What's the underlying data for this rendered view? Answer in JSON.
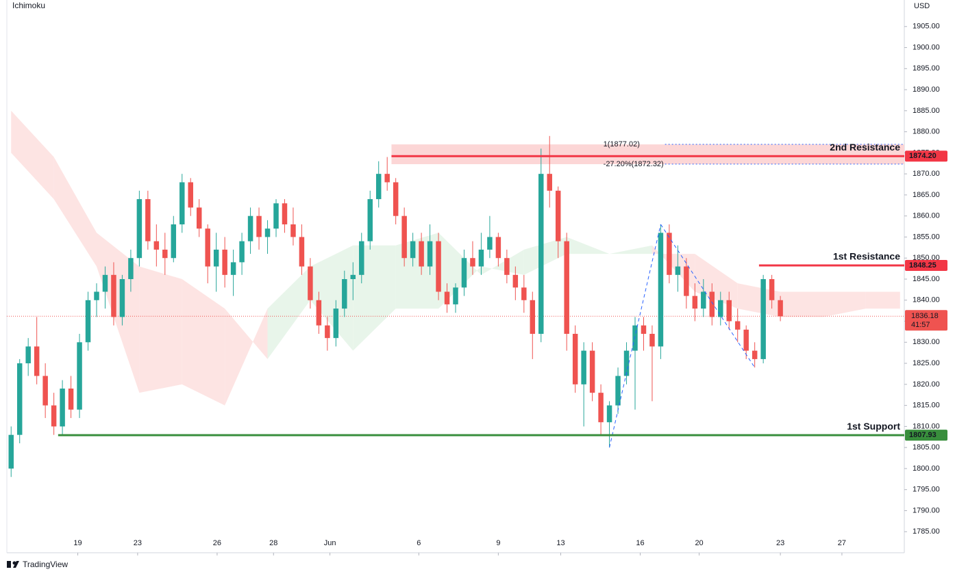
{
  "chart_data": {
    "type": "candlestick",
    "title": "Ichimoku",
    "y_axis_label": "USD",
    "brand": "TradingView",
    "up_color": "#26a69a",
    "down_color": "#ef5350",
    "ylim": [
      1780,
      1911.3
    ],
    "xlim": [
      -0.5,
      104.5
    ],
    "yticks": [
      {
        "value": 1905,
        "label": "1905.00"
      },
      {
        "value": 1900,
        "label": "1900.00"
      },
      {
        "value": 1895,
        "label": "1895.00"
      },
      {
        "value": 1890,
        "label": "1890.00"
      },
      {
        "value": 1885,
        "label": "1885.00"
      },
      {
        "value": 1880,
        "label": "1880.00"
      },
      {
        "value": 1875,
        "label": "1875.00"
      },
      {
        "value": 1870,
        "label": "1870.00"
      },
      {
        "value": 1865,
        "label": "1865.00"
      },
      {
        "value": 1860,
        "label": "1860.00"
      },
      {
        "value": 1855,
        "label": "1855.00"
      },
      {
        "value": 1850,
        "label": "1850.00"
      },
      {
        "value": 1845,
        "label": "1845.00"
      },
      {
        "value": 1840,
        "label": "1840.00"
      },
      {
        "value": 1835,
        "label": "1835.00"
      },
      {
        "value": 1830,
        "label": "1830.00"
      },
      {
        "value": 1825,
        "label": "1825.00"
      },
      {
        "value": 1820,
        "label": "1820.00"
      },
      {
        "value": 1815,
        "label": "1815.00"
      },
      {
        "value": 1810,
        "label": "1810.00"
      },
      {
        "value": 1805,
        "label": "1805.00"
      },
      {
        "value": 1800,
        "label": "1800.00"
      },
      {
        "value": 1795,
        "label": "1795.00"
      },
      {
        "value": 1790,
        "label": "1790.00"
      },
      {
        "value": 1785,
        "label": "1785.00"
      }
    ],
    "xticks": [
      {
        "value": 7.8,
        "label": "19"
      },
      {
        "value": 14.8,
        "label": "23"
      },
      {
        "value": 24.1,
        "label": "26"
      },
      {
        "value": 30.7,
        "label": "28"
      },
      {
        "value": 37.3,
        "label": "Jun"
      },
      {
        "value": 47.7,
        "label": "6"
      },
      {
        "value": 57,
        "label": "9"
      },
      {
        "value": 64.3,
        "label": "13"
      },
      {
        "value": 73.6,
        "label": "16"
      },
      {
        "value": 80.5,
        "label": "20"
      },
      {
        "value": 90,
        "label": "23"
      },
      {
        "value": 97.2,
        "label": "27"
      }
    ],
    "ohlc": [
      [
        1800,
        1810,
        1798,
        1808
      ],
      [
        1808,
        1826,
        1806,
        1825
      ],
      [
        1825,
        1831,
        1822,
        1829
      ],
      [
        1829,
        1836,
        1820,
        1822
      ],
      [
        1822,
        1825,
        1812,
        1815
      ],
      [
        1815,
        1818,
        1808,
        1810
      ],
      [
        1810,
        1821,
        1808,
        1819
      ],
      [
        1819,
        1822,
        1812,
        1814
      ],
      [
        1814,
        1832,
        1812,
        1830
      ],
      [
        1830,
        1842,
        1828,
        1840
      ],
      [
        1840,
        1844,
        1836,
        1842
      ],
      [
        1842,
        1848,
        1838,
        1846
      ],
      [
        1846,
        1849,
        1834,
        1836
      ],
      [
        1836,
        1846,
        1834,
        1845
      ],
      [
        1845,
        1852,
        1842,
        1850
      ],
      [
        1850,
        1866,
        1848,
        1864
      ],
      [
        1864,
        1866,
        1852,
        1854
      ],
      [
        1854,
        1858,
        1848,
        1852
      ],
      [
        1852,
        1856,
        1846,
        1850
      ],
      [
        1850,
        1860,
        1849,
        1858
      ],
      [
        1858,
        1870,
        1856,
        1868
      ],
      [
        1868,
        1869,
        1860,
        1862
      ],
      [
        1862,
        1864,
        1855,
        1857
      ],
      [
        1857,
        1858,
        1844,
        1848
      ],
      [
        1848,
        1856,
        1842,
        1852
      ],
      [
        1852,
        1855,
        1843,
        1846
      ],
      [
        1846,
        1852,
        1841,
        1849
      ],
      [
        1849,
        1856,
        1846,
        1854
      ],
      [
        1854,
        1862,
        1851,
        1860
      ],
      [
        1860,
        1862,
        1852,
        1855
      ],
      [
        1855,
        1859,
        1851,
        1857
      ],
      [
        1857,
        1864,
        1855,
        1863
      ],
      [
        1863,
        1864,
        1856,
        1858
      ],
      [
        1858,
        1862,
        1853,
        1855
      ],
      [
        1855,
        1858,
        1846,
        1848
      ],
      [
        1848,
        1850,
        1838,
        1840
      ],
      [
        1840,
        1842,
        1832,
        1834
      ],
      [
        1834,
        1836,
        1828,
        1831
      ],
      [
        1831,
        1840,
        1829,
        1838
      ],
      [
        1838,
        1847,
        1836,
        1845
      ],
      [
        1845,
        1849,
        1840,
        1846
      ],
      [
        1846,
        1856,
        1844,
        1854
      ],
      [
        1854,
        1866,
        1852,
        1864
      ],
      [
        1864,
        1873,
        1862,
        1870
      ],
      [
        1870,
        1874,
        1866,
        1868
      ],
      [
        1868,
        1869,
        1858,
        1860
      ],
      [
        1860,
        1862,
        1848,
        1850
      ],
      [
        1850,
        1856,
        1848,
        1854
      ],
      [
        1854,
        1856,
        1846,
        1848
      ],
      [
        1848,
        1858,
        1846,
        1854
      ],
      [
        1854,
        1856,
        1840,
        1842
      ],
      [
        1842,
        1844,
        1837,
        1839
      ],
      [
        1839,
        1844,
        1837,
        1843
      ],
      [
        1843,
        1852,
        1841,
        1850
      ],
      [
        1850,
        1854,
        1846,
        1848
      ],
      [
        1848,
        1856,
        1846,
        1852
      ],
      [
        1852,
        1860,
        1850,
        1855
      ],
      [
        1855,
        1856,
        1848,
        1850
      ],
      [
        1850,
        1852,
        1844,
        1846
      ],
      [
        1846,
        1848,
        1840,
        1843
      ],
      [
        1843,
        1846,
        1837,
        1840
      ],
      [
        1840,
        1842,
        1826,
        1832
      ],
      [
        1832,
        1876,
        1830,
        1870
      ],
      [
        1870,
        1879,
        1862,
        1866
      ],
      [
        1866,
        1867,
        1850,
        1854
      ],
      [
        1854,
        1856,
        1828,
        1832
      ],
      [
        1832,
        1834,
        1818,
        1820
      ],
      [
        1820,
        1830,
        1810,
        1828
      ],
      [
        1828,
        1830,
        1816,
        1818
      ],
      [
        1818,
        1820,
        1808,
        1811
      ],
      [
        1811,
        1816,
        1805,
        1815
      ],
      [
        1815,
        1824,
        1813,
        1822
      ],
      [
        1822,
        1830,
        1820,
        1828
      ],
      [
        1828,
        1836,
        1814,
        1834
      ],
      [
        1834,
        1836,
        1828,
        1832
      ],
      [
        1832,
        1834,
        1816,
        1829
      ],
      [
        1829,
        1858,
        1826,
        1856
      ],
      [
        1856,
        1858,
        1844,
        1846
      ],
      [
        1846,
        1853,
        1842,
        1848
      ],
      [
        1848,
        1850,
        1838,
        1841
      ],
      [
        1841,
        1844,
        1835,
        1838
      ],
      [
        1838,
        1845,
        1836,
        1842
      ],
      [
        1842,
        1844,
        1834,
        1836
      ],
      [
        1836,
        1842,
        1834,
        1840
      ],
      [
        1840,
        1842,
        1833,
        1835
      ],
      [
        1835,
        1838,
        1830,
        1833
      ],
      [
        1833,
        1834,
        1826,
        1828
      ],
      [
        1828,
        1830,
        1824,
        1826
      ],
      [
        1826,
        1846,
        1825,
        1845
      ],
      [
        1845,
        1846,
        1838,
        1840
      ],
      [
        1840,
        1841,
        1835,
        1836.18
      ]
    ],
    "cloud": {
      "up_color": "#e8f5ea",
      "down_color": "#fde4e3",
      "x": [
        0,
        5,
        10,
        15,
        20,
        25,
        30,
        35,
        40,
        45,
        50,
        55,
        60,
        65,
        70,
        75,
        80,
        85,
        90,
        95,
        100,
        104
      ],
      "span_a": [
        1875,
        1864,
        1848,
        1818,
        1820,
        1815,
        1838,
        1848,
        1853,
        1853,
        1856,
        1846,
        1852,
        1855,
        1851,
        1853,
        1842,
        1838,
        1836,
        1836,
        1838,
        1838
      ],
      "span_b": [
        1885,
        1874,
        1856,
        1848,
        1845,
        1838,
        1826,
        1840,
        1828,
        1838,
        1838,
        1848,
        1846,
        1851,
        1851,
        1851,
        1851,
        1844,
        1842,
        1842,
        1842,
        1842
      ]
    },
    "zone": {
      "color": "#fcd6d6",
      "x_start": 44.5,
      "low": 1872.3,
      "high": 1877.0
    },
    "levels": [
      {
        "name": "2nd Resistance",
        "value": 1874.2,
        "value_label": "1874.20",
        "x_start": 44.5,
        "color": "#f23645"
      },
      {
        "name": "1st Resistance",
        "value": 1848.25,
        "value_label": "1848.25",
        "x_start": 87.5,
        "color": "#f23645"
      },
      {
        "name": "1st Support",
        "value": 1807.93,
        "value_label": "1807.93",
        "x_start": 5.5,
        "color": "#388e3c"
      }
    ],
    "fib_lines": [
      {
        "label": "1(1877.02)",
        "value": 1877.02,
        "x_start": 76.5
      },
      {
        "label": "-27.20%(1872.32)",
        "value": 1872.32,
        "x_start": 76.5
      }
    ],
    "fib_color": "#2962ff",
    "pattern_points": [
      70,
      76,
      87
    ],
    "last_price_label": "1836.18",
    "countdown": "41:57"
  }
}
